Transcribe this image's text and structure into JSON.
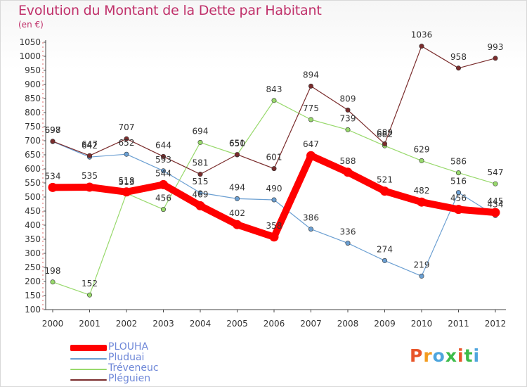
{
  "title": "Evolution du Montant de la Dette par Habitant",
  "subtitle": "(en €)",
  "brand": {
    "text": "Proxiti",
    "colors": [
      "#e8552a",
      "#f39c1f",
      "#4ea5dd",
      "#3dbb4a",
      "#e8552a",
      "#3dbb4a",
      "#4ea5dd"
    ]
  },
  "chart_data": {
    "type": "line",
    "x": [
      "2000",
      "2001",
      "2002",
      "2003",
      "2004",
      "2005",
      "2006",
      "2007",
      "2008",
      "2009",
      "2010",
      "2011",
      "2012"
    ],
    "yticks": [
      100,
      150,
      200,
      250,
      300,
      350,
      400,
      450,
      500,
      550,
      600,
      650,
      700,
      750,
      800,
      850,
      900,
      950,
      1000,
      1050
    ],
    "ylim": [
      100,
      1050
    ],
    "grid": false,
    "legend_position": "bottom-left",
    "series": [
      {
        "name": "PLOUHA",
        "color": "#ff0000",
        "width": 10,
        "values": [
          534,
          535,
          518,
          544,
          469,
          402,
          358,
          647,
          588,
          521,
          482,
          456,
          445
        ],
        "labels": [
          "534",
          "535",
          "518",
          "544",
          "469",
          "402",
          "358",
          "647",
          "588",
          "521",
          "482",
          "456",
          "445"
        ]
      },
      {
        "name": "Pluduai",
        "color": "#6b9fd2",
        "width": 1.2,
        "values": [
          697,
          642,
          652,
          593,
          515,
          494,
          490,
          386,
          336,
          274,
          219,
          516,
          434
        ],
        "labels": [
          "697",
          "642",
          "652",
          "593",
          "515",
          "494",
          "490",
          "386",
          "336",
          "274",
          "219",
          "516",
          "434"
        ]
      },
      {
        "name": "Tréveneuc",
        "color": "#98d96c",
        "width": 1.2,
        "values": [
          198,
          152,
          513,
          456,
          694,
          650,
          843,
          775,
          739,
          682,
          629,
          586,
          547
        ],
        "labels": [
          "198",
          "152",
          "513",
          "456",
          "694",
          "650",
          "843",
          "775",
          "739",
          "682",
          "629",
          "586",
          "547"
        ]
      },
      {
        "name": "Pléguien",
        "color": "#7a2c2c",
        "width": 1.2,
        "values": [
          698,
          647,
          707,
          644,
          581,
          651,
          601,
          894,
          809,
          689,
          1036,
          958,
          993
        ],
        "labels": [
          "698",
          "647",
          "707",
          "644",
          "581",
          "651",
          "601",
          "894",
          "809",
          "689",
          "1036",
          "958",
          "993"
        ]
      }
    ]
  }
}
